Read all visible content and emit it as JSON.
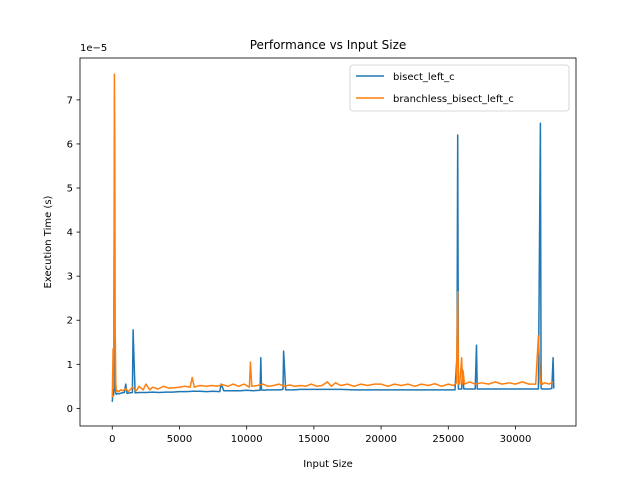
{
  "chart_data": {
    "type": "line",
    "title": "Performance vs Input Size",
    "xlabel": "Input Size",
    "ylabel": "Execution Time (s)",
    "y_offset_label": "1e−5",
    "y_scale_factor": 1e-05,
    "xlim": [
      -2400,
      34500
    ],
    "ylim": [
      -0.4,
      7.95
    ],
    "x_ticks": [
      0,
      5000,
      10000,
      15000,
      20000,
      25000,
      30000
    ],
    "x_tick_labels": [
      "0",
      "5000",
      "10000",
      "15000",
      "20000",
      "25000",
      "30000"
    ],
    "y_ticks": [
      0,
      1,
      2,
      3,
      4,
      5,
      6,
      7
    ],
    "y_tick_labels": [
      "0",
      "1",
      "2",
      "3",
      "4",
      "5",
      "6",
      "7"
    ],
    "grid": false,
    "legend_position": "top-right",
    "series": [
      {
        "name": "bisect_left_c",
        "color": "#1f77b4",
        "x": [
          0,
          50,
          100,
          150,
          200,
          250,
          300,
          400,
          500,
          700,
          900,
          1000,
          1100,
          1300,
          1500,
          1550,
          1700,
          2000,
          2500,
          3000,
          3500,
          4000,
          4500,
          5000,
          5500,
          6000,
          6500,
          7000,
          7500,
          8000,
          8100,
          8300,
          8500,
          9000,
          9500,
          10000,
          10500,
          11000,
          11050,
          11100,
          11300,
          11500,
          12000,
          12500,
          12700,
          12750,
          12900,
          13500,
          14000,
          15000,
          16000,
          17000,
          18000,
          19000,
          20000,
          21000,
          22000,
          23000,
          24000,
          25000,
          25500,
          25650,
          25700,
          25750,
          25850,
          26000,
          26050,
          26150,
          26500,
          27000,
          27100,
          27150,
          27300,
          28000,
          29000,
          30000,
          31000,
          31700,
          31850,
          31900,
          32000,
          32100,
          32500,
          32700,
          32800,
          32850
        ],
        "values": [
          0.15,
          0.4,
          0.3,
          4.2,
          0.45,
          0.35,
          0.32,
          0.34,
          0.33,
          0.35,
          0.36,
          0.55,
          0.34,
          0.35,
          0.36,
          1.78,
          0.35,
          0.36,
          0.36,
          0.37,
          0.36,
          0.37,
          0.37,
          0.38,
          0.38,
          0.39,
          0.39,
          0.38,
          0.39,
          0.38,
          0.55,
          0.4,
          0.4,
          0.4,
          0.4,
          0.41,
          0.4,
          0.41,
          1.15,
          0.42,
          0.41,
          0.42,
          0.42,
          0.42,
          0.43,
          1.3,
          0.42,
          0.42,
          0.43,
          0.43,
          0.43,
          0.43,
          0.42,
          0.42,
          0.42,
          0.42,
          0.42,
          0.42,
          0.42,
          0.42,
          0.42,
          1.2,
          6.2,
          0.44,
          0.44,
          0.44,
          0.88,
          0.44,
          0.44,
          0.44,
          1.43,
          0.44,
          0.44,
          0.44,
          0.44,
          0.44,
          0.44,
          0.44,
          6.47,
          0.45,
          0.44,
          0.44,
          0.44,
          0.45,
          1.15,
          0.45
        ]
      },
      {
        "name": "branchless_bisect_left_c",
        "color": "#ff7f0e",
        "x": [
          0,
          60,
          100,
          130,
          160,
          190,
          220,
          260,
          300,
          400,
          500,
          600,
          800,
          1000,
          1200,
          1500,
          1800,
          2000,
          2300,
          2500,
          2800,
          3000,
          3400,
          3800,
          4200,
          4600,
          5000,
          5400,
          5800,
          5950,
          6100,
          6500,
          7000,
          7400,
          7800,
          8200,
          8600,
          9000,
          9400,
          9800,
          10200,
          10280,
          10380,
          10800,
          11200,
          11600,
          12000,
          12400,
          12800,
          13200,
          13600,
          14000,
          14400,
          14800,
          15200,
          15600,
          16000,
          16300,
          16600,
          17000,
          17500,
          18000,
          18500,
          19000,
          19500,
          20000,
          20500,
          21000,
          21500,
          22000,
          22500,
          23000,
          23500,
          24000,
          24500,
          25000,
          25400,
          25600,
          25700,
          25750,
          25850,
          26000,
          26050,
          26100,
          26200,
          26600,
          27000,
          27500,
          28000,
          28500,
          29000,
          29500,
          30000,
          30500,
          31000,
          31500,
          31700,
          31850,
          31950,
          32000,
          32200,
          32500,
          32800
        ],
        "values": [
          0.25,
          1.35,
          0.45,
          3.0,
          7.58,
          6.0,
          1.8,
          0.55,
          0.38,
          0.4,
          0.38,
          0.42,
          0.4,
          0.45,
          0.38,
          0.48,
          0.4,
          0.5,
          0.42,
          0.55,
          0.42,
          0.48,
          0.44,
          0.5,
          0.46,
          0.47,
          0.48,
          0.5,
          0.48,
          0.7,
          0.48,
          0.52,
          0.5,
          0.52,
          0.5,
          0.54,
          0.5,
          0.55,
          0.5,
          0.55,
          0.48,
          1.05,
          0.5,
          0.52,
          0.55,
          0.5,
          0.52,
          0.55,
          0.5,
          0.53,
          0.5,
          0.52,
          0.5,
          0.55,
          0.5,
          0.52,
          0.6,
          0.5,
          0.58,
          0.52,
          0.55,
          0.5,
          0.55,
          0.52,
          0.55,
          0.55,
          0.5,
          0.55,
          0.52,
          0.55,
          0.5,
          0.55,
          0.52,
          0.56,
          0.5,
          0.55,
          0.52,
          0.58,
          2.65,
          0.55,
          0.55,
          1.15,
          0.55,
          0.85,
          0.55,
          0.6,
          0.55,
          0.58,
          0.55,
          0.6,
          0.55,
          0.58,
          0.55,
          0.6,
          0.55,
          0.55,
          1.65,
          0.55,
          0.6,
          0.55,
          0.58,
          0.55,
          0.6
        ]
      }
    ]
  }
}
